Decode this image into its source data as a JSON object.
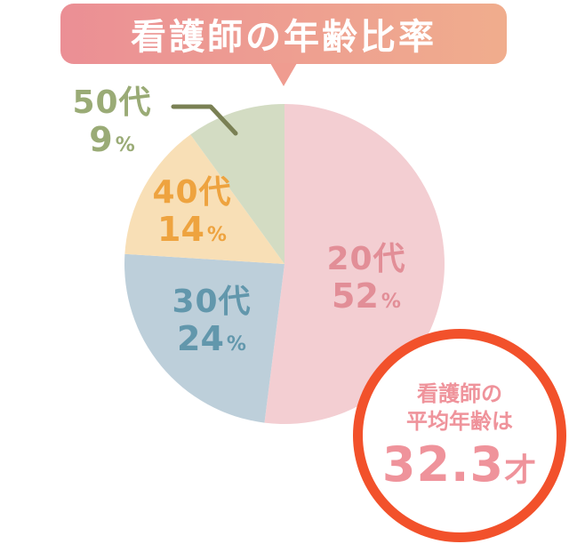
{
  "title": {
    "text": "看護師の年齢比率"
  },
  "chart_data": {
    "type": "pie",
    "title": "看護師の年齢比率",
    "unit": "%",
    "start_angle_deg": 0,
    "clockwise": true,
    "slices": [
      {
        "label": "20代",
        "value": 52,
        "color": "#f3ced2",
        "label_color": "#e28e97"
      },
      {
        "label": "30代",
        "value": 24,
        "color": "#bdcfda",
        "label_color": "#6297ac"
      },
      {
        "label": "40代",
        "value": 14,
        "color": "#f8dfb6",
        "label_color": "#eea33f"
      },
      {
        "label": "50代",
        "value": 9,
        "color": "#d3dcc3",
        "label_color": "#9aab76"
      }
    ]
  },
  "callout": {
    "line1": "看護師の",
    "line2": "平均年齢は",
    "big_value": "32.3",
    "big_unit": "才"
  },
  "theme": {
    "background": "#ffffff",
    "banner_gradient_left": "#eb8f95",
    "banner_gradient_right": "#f0ad8d",
    "banner_text": "#ffffff",
    "pointer": "#ef9c90",
    "leader_line": "#7a8054",
    "callout_border": "#f2512b",
    "callout_bg": "#ffffff",
    "callout_text": "#ef939b"
  }
}
